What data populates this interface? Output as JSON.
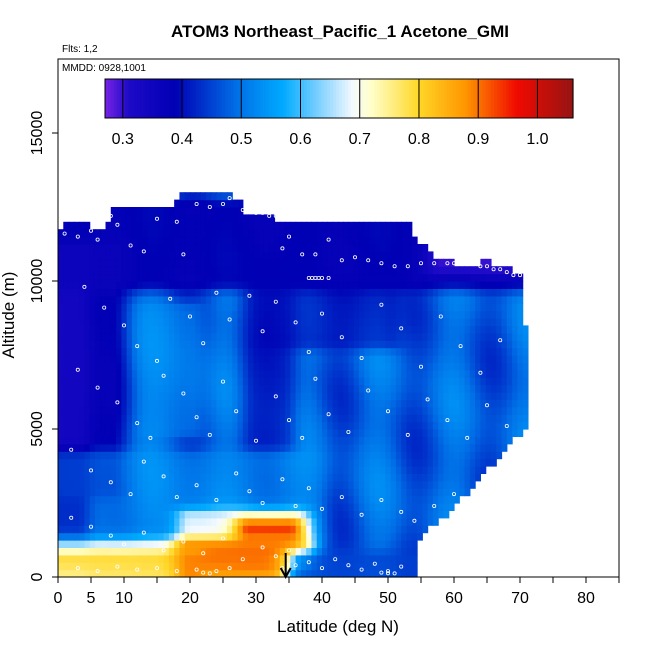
{
  "chart_data": {
    "type": "heatmap",
    "title": "ATOM3 Northeast_Pacific_1 Acetone_GMI",
    "annotations": [
      "Flts: 1,2",
      "MMDD: 0928,1001"
    ],
    "xlabel": "Latitude (deg N)",
    "ylabel": "Altitude (m)",
    "xlim": [
      0,
      85
    ],
    "ylim": [
      0,
      17500
    ],
    "x_ticks": [
      0,
      5,
      10,
      20,
      30,
      40,
      50,
      60,
      70,
      80
    ],
    "y_ticks": [
      0,
      5000,
      10000,
      15000
    ],
    "colorbar": {
      "range": [
        0.27,
        1.06
      ],
      "ticks": [
        0.3,
        0.4,
        0.5,
        0.6,
        0.7,
        0.8,
        0.9,
        1.0
      ],
      "tick_labels": [
        "0.3",
        "0.4",
        "0.5",
        "0.6",
        "0.7",
        "0.8",
        "0.9",
        "1.0"
      ]
    },
    "marker": {
      "type": "arrow-down",
      "latitude": 34.5,
      "altitude": 0
    },
    "column_top_altitude_m": [
      [
        0,
        11800
      ],
      [
        1,
        12000
      ],
      [
        4,
        12000
      ],
      [
        5,
        11800
      ],
      [
        7,
        11800
      ],
      [
        8,
        12500
      ],
      [
        10,
        12500
      ],
      [
        14,
        12500
      ],
      [
        16,
        12400
      ],
      [
        18,
        12900
      ],
      [
        20,
        12900
      ],
      [
        26,
        12900
      ],
      [
        27,
        12800
      ],
      [
        28,
        12300
      ],
      [
        30,
        12200
      ],
      [
        32,
        12200
      ],
      [
        34,
        11900
      ],
      [
        41,
        11900
      ],
      [
        42,
        12000
      ],
      [
        46,
        12000
      ],
      [
        47,
        11900
      ],
      [
        53,
        11900
      ],
      [
        54,
        11400
      ],
      [
        56,
        11000
      ],
      [
        57,
        10800
      ],
      [
        58,
        10700
      ],
      [
        60,
        10600
      ],
      [
        63,
        10600
      ],
      [
        64,
        10700
      ],
      [
        66,
        10600
      ],
      [
        68,
        10400
      ],
      [
        70,
        10200
      ],
      [
        71,
        10100
      ],
      [
        73,
        10100
      ]
    ],
    "right_edge_latitude_by_altitude_m": [
      [
        0,
        54.5
      ],
      [
        500,
        54.5
      ],
      [
        1000,
        54.5
      ],
      [
        1500,
        56
      ],
      [
        2000,
        59
      ],
      [
        2500,
        61
      ],
      [
        3000,
        63
      ],
      [
        3500,
        65
      ],
      [
        4000,
        67
      ],
      [
        4500,
        69
      ],
      [
        5000,
        71
      ],
      [
        6000,
        71
      ],
      [
        7000,
        71
      ],
      [
        8000,
        71
      ],
      [
        9000,
        70.5
      ],
      [
        10000,
        70.5
      ],
      [
        10500,
        70.5
      ]
    ],
    "acetone_field": {
      "background_value": 0.48,
      "features": [
        {
          "latitude_range": [
            0,
            3
          ],
          "altitude_range": [
            0,
            11000
          ],
          "value": 0.29,
          "weight": 0.9
        },
        {
          "latitude_range": [
            1,
            8
          ],
          "altitude_range": [
            3000,
            11000
          ],
          "value": 0.35,
          "weight": 0.7
        },
        {
          "latitude_range": [
            0,
            70
          ],
          "altitude_range": [
            10000,
            12500
          ],
          "value": 0.36,
          "weight": 0.8
        },
        {
          "latitude_range": [
            58,
            71
          ],
          "altitude_range": [
            10500,
            11000
          ],
          "value": 0.29,
          "weight": 0.9
        },
        {
          "latitude_range": [
            32,
            50
          ],
          "altitude_range": [
            8000,
            10000
          ],
          "value": 0.38,
          "weight": 0.6
        },
        {
          "latitude_range": [
            30,
            34
          ],
          "altitude_range": [
            4500,
            10500
          ],
          "value": 0.39,
          "weight": 0.6
        },
        {
          "latitude_range": [
            14,
            20
          ],
          "altitude_range": [
            5000,
            9000
          ],
          "value": 0.55,
          "weight": 0.5
        },
        {
          "latitude_range": [
            0,
            38
          ],
          "altitude_range": [
            1500,
            4000
          ],
          "value": 0.55,
          "weight": 0.5
        },
        {
          "latitude_range": [
            20,
            36
          ],
          "altitude_range": [
            1000,
            2000
          ],
          "value": 0.72,
          "weight": 0.8
        },
        {
          "latitude_range": [
            29,
            35
          ],
          "altitude_range": [
            600,
            1700
          ],
          "value": 0.97,
          "weight": 0.9
        },
        {
          "latitude_range": [
            0,
            36
          ],
          "altitude_range": [
            600,
            1000
          ],
          "value": 0.74,
          "weight": 0.8
        },
        {
          "latitude_range": [
            20,
            35
          ],
          "altitude_range": [
            600,
            1000
          ],
          "value": 0.92,
          "weight": 0.9
        },
        {
          "latitude_range": [
            0,
            20
          ],
          "altitude_range": [
            0,
            600
          ],
          "value": 0.8,
          "weight": 0.9
        },
        {
          "latitude_range": [
            20,
            33
          ],
          "altitude_range": [
            0,
            600
          ],
          "value": 0.9,
          "weight": 0.9
        },
        {
          "latitude_range": [
            37,
            55
          ],
          "altitude_range": [
            0,
            600
          ],
          "value": 0.45,
          "weight": 0.8
        }
      ]
    },
    "sample_points": [
      [
        1,
        11600
      ],
      [
        3,
        11500
      ],
      [
        5,
        11700
      ],
      [
        6,
        11400
      ],
      [
        8,
        12200
      ],
      [
        9,
        11900
      ],
      [
        11,
        11200
      ],
      [
        13,
        11000
      ],
      [
        15,
        12100
      ],
      [
        18,
        12000
      ],
      [
        19,
        10900
      ],
      [
        21,
        12600
      ],
      [
        23,
        12500
      ],
      [
        25,
        12600
      ],
      [
        26,
        12800
      ],
      [
        27,
        12900
      ],
      [
        28,
        12400
      ],
      [
        29,
        12400
      ],
      [
        30,
        12300
      ],
      [
        31,
        12300
      ],
      [
        32,
        12200
      ],
      [
        33,
        12200
      ],
      [
        34,
        11100
      ],
      [
        35,
        11500
      ],
      [
        37,
        10900
      ],
      [
        39,
        10900
      ],
      [
        41,
        11400
      ],
      [
        43,
        10700
      ],
      [
        45,
        10800
      ],
      [
        47,
        10700
      ],
      [
        49,
        10600
      ],
      [
        51,
        10500
      ],
      [
        53,
        10500
      ],
      [
        55,
        10600
      ],
      [
        57,
        10600
      ],
      [
        59,
        10600
      ],
      [
        60,
        10600
      ],
      [
        61,
        10600
      ],
      [
        62,
        10600
      ],
      [
        63,
        10600
      ],
      [
        64,
        10500
      ],
      [
        65,
        10500
      ],
      [
        66,
        10400
      ],
      [
        67,
        10400
      ],
      [
        68,
        10300
      ],
      [
        69,
        10200
      ],
      [
        70,
        10200
      ],
      [
        38,
        10100
      ],
      [
        38.5,
        10100
      ],
      [
        39,
        10100
      ],
      [
        39.5,
        10100
      ],
      [
        40,
        10100
      ],
      [
        41,
        10100
      ],
      [
        4,
        9800
      ],
      [
        7,
        9100
      ],
      [
        10,
        8500
      ],
      [
        12,
        7800
      ],
      [
        15,
        7300
      ],
      [
        17,
        9400
      ],
      [
        20,
        8800
      ],
      [
        22,
        7900
      ],
      [
        24,
        9600
      ],
      [
        26,
        8700
      ],
      [
        29,
        9500
      ],
      [
        31,
        8300
      ],
      [
        33,
        9300
      ],
      [
        36,
        8600
      ],
      [
        38,
        7600
      ],
      [
        40,
        8900
      ],
      [
        43,
        8100
      ],
      [
        46,
        7400
      ],
      [
        49,
        9200
      ],
      [
        52,
        8400
      ],
      [
        55,
        7100
      ],
      [
        58,
        8800
      ],
      [
        61,
        7800
      ],
      [
        64,
        6900
      ],
      [
        67,
        8000
      ],
      [
        3,
        7000
      ],
      [
        6,
        6400
      ],
      [
        9,
        5900
      ],
      [
        12,
        5200
      ],
      [
        14,
        4700
      ],
      [
        16,
        6800
      ],
      [
        19,
        6200
      ],
      [
        21,
        5400
      ],
      [
        23,
        4800
      ],
      [
        25,
        6600
      ],
      [
        27,
        5600
      ],
      [
        30,
        4600
      ],
      [
        33,
        6100
      ],
      [
        35,
        5300
      ],
      [
        37,
        4700
      ],
      [
        39,
        6700
      ],
      [
        41,
        5500
      ],
      [
        44,
        4900
      ],
      [
        47,
        6300
      ],
      [
        50,
        5600
      ],
      [
        53,
        4800
      ],
      [
        56,
        6000
      ],
      [
        59,
        5300
      ],
      [
        62,
        4700
      ],
      [
        65,
        5800
      ],
      [
        68,
        5100
      ],
      [
        70,
        4200
      ],
      [
        2,
        4300
      ],
      [
        5,
        3600
      ],
      [
        8,
        3200
      ],
      [
        11,
        2800
      ],
      [
        13,
        3900
      ],
      [
        16,
        3400
      ],
      [
        18,
        2700
      ],
      [
        21,
        3100
      ],
      [
        24,
        2600
      ],
      [
        27,
        3500
      ],
      [
        29,
        2900
      ],
      [
        31,
        2500
      ],
      [
        34,
        3300
      ],
      [
        36,
        2400
      ],
      [
        38,
        3000
      ],
      [
        40,
        2300
      ],
      [
        43,
        2700
      ],
      [
        46,
        2100
      ],
      [
        49,
        2600
      ],
      [
        52,
        2200
      ],
      [
        54,
        1900
      ],
      [
        57,
        2400
      ],
      [
        60,
        2800
      ],
      [
        2,
        2000
      ],
      [
        5,
        1700
      ],
      [
        8,
        1400
      ],
      [
        10,
        1100
      ],
      [
        13,
        1500
      ],
      [
        16,
        900
      ],
      [
        19,
        1200
      ],
      [
        22,
        800
      ],
      [
        25,
        1300
      ],
      [
        28,
        600
      ],
      [
        31,
        1000
      ],
      [
        33,
        700
      ],
      [
        34,
        300
      ],
      [
        35,
        900
      ],
      [
        36,
        400
      ],
      [
        38,
        500
      ],
      [
        40,
        300
      ],
      [
        42,
        600
      ],
      [
        44,
        400
      ],
      [
        46,
        250
      ],
      [
        48,
        450
      ],
      [
        50,
        200
      ],
      [
        52,
        350
      ],
      [
        3,
        300
      ],
      [
        6,
        200
      ],
      [
        9,
        350
      ],
      [
        12,
        250
      ],
      [
        15,
        300
      ],
      [
        18,
        200
      ],
      [
        21,
        250
      ],
      [
        22,
        150
      ],
      [
        23,
        120
      ],
      [
        24,
        200
      ],
      [
        26,
        300
      ],
      [
        49,
        150
      ],
      [
        50,
        130
      ],
      [
        51,
        120
      ]
    ]
  }
}
